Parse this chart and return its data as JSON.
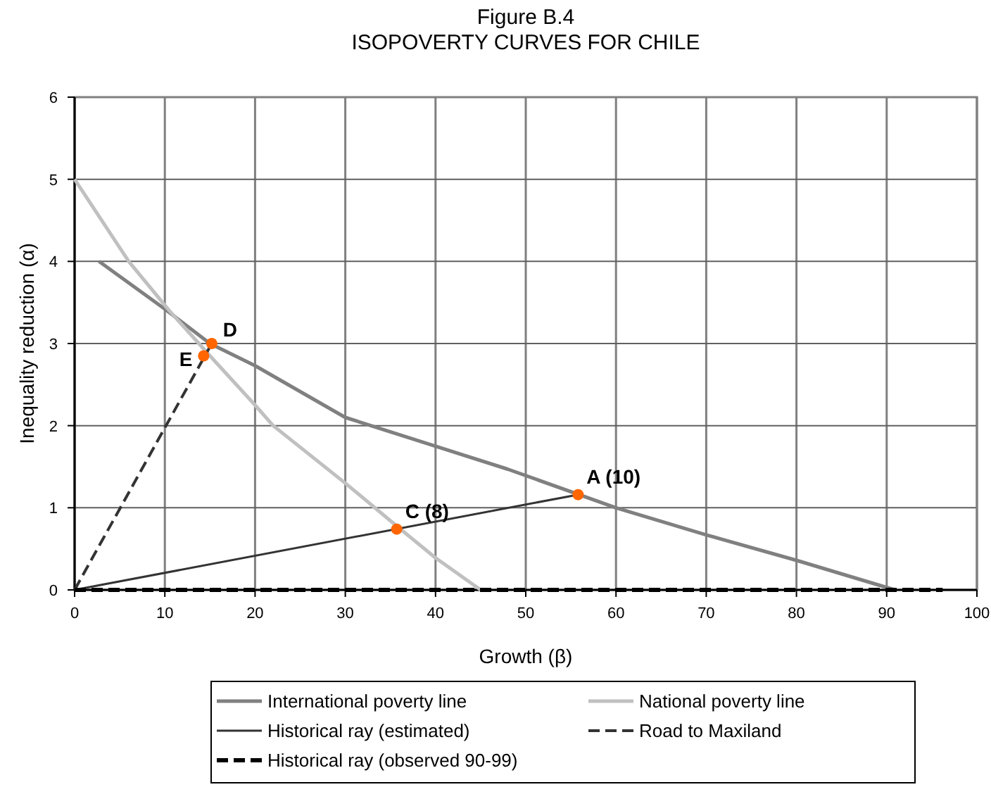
{
  "chart_data": {
    "type": "line",
    "title": "Figure B.4",
    "subtitle": "ISOPOVERTY CURVES FOR CHILE",
    "xlabel": "Growth (β)",
    "ylabel": "Inequality reduction (α)",
    "xlim": [
      0,
      100
    ],
    "xticks": [
      0,
      10,
      20,
      30,
      40,
      50,
      60,
      70,
      80,
      90,
      100
    ],
    "ylim": [
      0,
      6
    ],
    "yticks": [
      0,
      1,
      2,
      3,
      4,
      5,
      6
    ],
    "grid": true,
    "legend": "bottom",
    "series": [
      {
        "name": "International poverty line",
        "color": "#808080",
        "line_style": "solid",
        "x": [
          2.7,
          10,
          15,
          20,
          30,
          40,
          48,
          60,
          70,
          80,
          90.9
        ],
        "values": [
          4,
          3.42,
          3.0,
          2.73,
          2.1,
          1.75,
          1.47,
          1.0,
          0.67,
          0.36,
          0
        ]
      },
      {
        "name": "National poverty line",
        "color": "#c0c0c0",
        "line_style": "solid",
        "x": [
          0,
          6,
          10.5,
          15,
          20,
          22,
          30,
          36,
          40,
          45
        ],
        "values": [
          5,
          4,
          3.4,
          2.85,
          2.25,
          2.0,
          1.3,
          0.75,
          0.39,
          0
        ]
      },
      {
        "name": "Historical ray (estimated)",
        "color": "#333333",
        "line_style": "solid",
        "x": [
          0,
          55.8
        ],
        "values": [
          0,
          1.16
        ]
      },
      {
        "name": "Road to Maxiland",
        "color": "#333333",
        "line_style": "dashed",
        "x": [
          0,
          15.2
        ],
        "values": [
          0,
          3.0
        ]
      },
      {
        "name": "Historical ray (observed 90-99)",
        "color": "#000000",
        "line_style": "dashed",
        "x": [
          0,
          96.2
        ],
        "values": [
          0,
          0
        ]
      },
      {
        "type": "scatter",
        "color": "#ff6600",
        "marker": "circle",
        "x": [
          55.8,
          35.7,
          15.2,
          14.3
        ],
        "values": [
          1.16,
          0.74,
          3.0,
          2.85
        ]
      }
    ],
    "annotations": [
      {
        "text": "A (10)",
        "x": 55.8,
        "y": 1.16
      },
      {
        "text": "C (8)",
        "x": 35.7,
        "y": 0.74
      },
      {
        "text": "D",
        "x": 15.2,
        "y": 3.0
      },
      {
        "text": "E",
        "x": 14.3,
        "y": 2.85
      }
    ]
  }
}
